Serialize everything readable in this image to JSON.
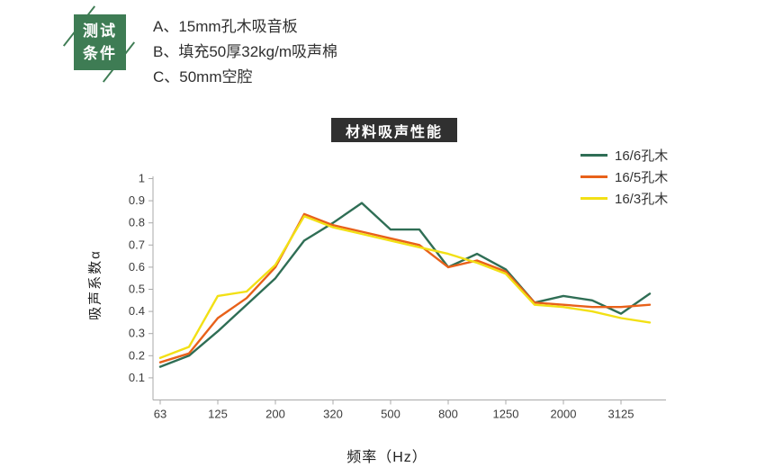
{
  "colors": {
    "badge_green": "#3e7c54",
    "title_bg": "#303030",
    "axis": "#a9a9a9",
    "tick_text": "#3c3c3c"
  },
  "conditions": {
    "badge_line1": "测试",
    "badge_line2": "条件",
    "items": [
      "A、15mm孔木吸音板",
      "B、填充50厚32kg/m吸声棉",
      "C、50mm空腔"
    ]
  },
  "chart_data": {
    "type": "line",
    "title": "材料吸声性能",
    "xlabel": "频率（Hz）",
    "ylabel": "吸声系数α",
    "ylim": [
      0,
      1
    ],
    "grid": false,
    "legend_position": "top-right",
    "x_tick_labels": [
      "63",
      "125",
      "200",
      "320",
      "500",
      "800",
      "1250",
      "2000",
      "3125"
    ],
    "y_tick_labels": [
      "0.1",
      "0.2",
      "0.3",
      "0.4",
      "0.5",
      "0.6",
      "0.7",
      "0.8",
      "0.9",
      "1"
    ],
    "x_points": [
      63,
      80,
      125,
      160,
      200,
      250,
      320,
      400,
      500,
      630,
      800,
      1000,
      1250,
      1600,
      2000,
      2500,
      3125,
      4000
    ],
    "series": [
      {
        "name": "16/6孔木",
        "color": "#2f6e55",
        "values": [
          0.15,
          0.2,
          0.31,
          0.43,
          0.55,
          0.72,
          0.8,
          0.89,
          0.77,
          0.77,
          0.6,
          0.66,
          0.59,
          0.44,
          0.47,
          0.45,
          0.39,
          0.48
        ]
      },
      {
        "name": "16/5孔木",
        "color": "#e8611a",
        "values": [
          0.17,
          0.21,
          0.37,
          0.46,
          0.6,
          0.84,
          0.79,
          0.76,
          0.73,
          0.7,
          0.6,
          0.63,
          0.58,
          0.44,
          0.43,
          0.42,
          0.42,
          0.43
        ]
      },
      {
        "name": "16/3孔木",
        "color": "#f2e015",
        "values": [
          0.19,
          0.24,
          0.47,
          0.49,
          0.61,
          0.83,
          0.78,
          0.75,
          0.72,
          0.69,
          0.66,
          0.62,
          0.57,
          0.43,
          0.42,
          0.4,
          0.37,
          0.35
        ]
      }
    ]
  }
}
